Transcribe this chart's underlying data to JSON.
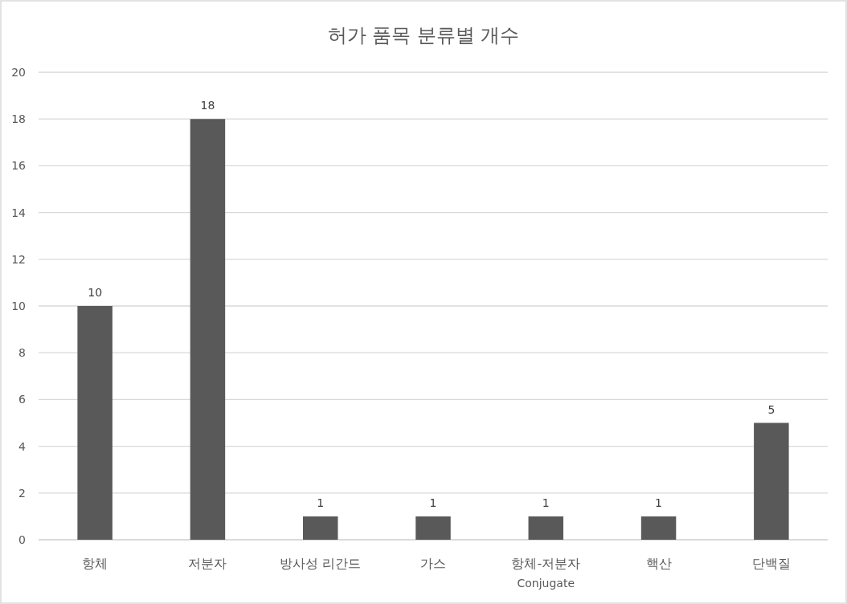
{
  "chart_data": {
    "type": "bar",
    "title": "허가 품목 분류별 개수",
    "categories": [
      "항체",
      "저분자",
      "방사성 리간드",
      "가스",
      "항체-저분자\nConjugate",
      "핵산",
      "단백질"
    ],
    "values": [
      10,
      18,
      1,
      1,
      1,
      1,
      5
    ],
    "color": "#595959",
    "ylim": [
      0,
      20
    ],
    "yticks": [
      0,
      2,
      4,
      6,
      8,
      10,
      12,
      14,
      16,
      18,
      20
    ],
    "grid": "y",
    "data_labels": true
  }
}
